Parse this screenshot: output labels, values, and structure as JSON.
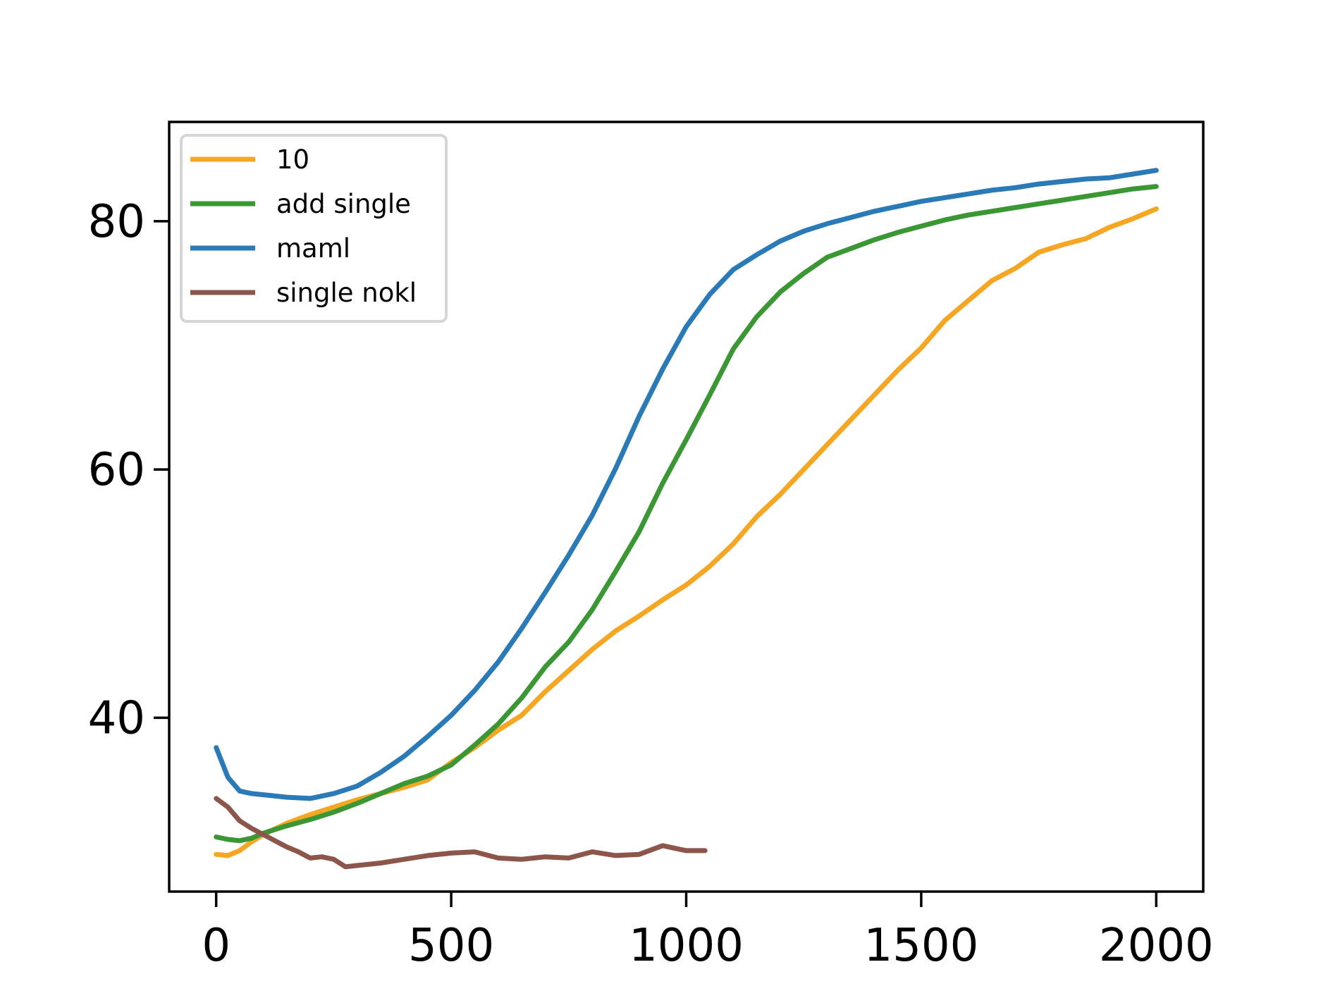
{
  "chart_data": {
    "type": "line",
    "title": "",
    "xlabel": "",
    "ylabel": "",
    "xlim": [
      -100,
      2100
    ],
    "ylim": [
      26,
      88
    ],
    "xticks": [
      0,
      500,
      1000,
      1500,
      2000
    ],
    "yticks": [
      40,
      60,
      80
    ],
    "grid": false,
    "legend_position": "top-left",
    "series": [
      {
        "name": "10",
        "color": "#f5a623",
        "x": [
          0,
          25,
          50,
          75,
          100,
          150,
          200,
          250,
          300,
          350,
          400,
          450,
          500,
          550,
          600,
          650,
          700,
          750,
          800,
          850,
          900,
          950,
          1000,
          1050,
          1100,
          1150,
          1200,
          1250,
          1300,
          1350,
          1400,
          1450,
          1500,
          1550,
          1600,
          1650,
          1700,
          1750,
          1800,
          1850,
          1900,
          1950,
          2000
        ],
        "y": [
          29,
          28.9,
          29.3,
          30,
          30.6,
          31.5,
          32.2,
          32.8,
          33.4,
          33.9,
          34.4,
          35,
          36.4,
          37.6,
          39,
          40.2,
          42.1,
          43.8,
          45.5,
          47,
          48.2,
          49.5,
          50.7,
          52.2,
          54,
          56.2,
          58,
          60,
          62,
          64,
          66,
          68,
          69.8,
          72,
          73.6,
          75.2,
          76.2,
          77.5,
          78.1,
          78.6,
          79.5,
          80.2,
          81
        ]
      },
      {
        "name": "add single",
        "color": "#3a9734",
        "x": [
          0,
          25,
          50,
          75,
          100,
          150,
          200,
          250,
          300,
          350,
          400,
          450,
          500,
          550,
          600,
          650,
          700,
          750,
          800,
          850,
          900,
          950,
          1000,
          1050,
          1100,
          1150,
          1200,
          1250,
          1300,
          1350,
          1400,
          1450,
          1500,
          1550,
          1600,
          1650,
          1700,
          1750,
          1800,
          1850,
          1900,
          1950,
          2000
        ],
        "y": [
          30.4,
          30.2,
          30.1,
          30.3,
          30.7,
          31.3,
          31.8,
          32.4,
          33.1,
          33.9,
          34.7,
          35.3,
          36.2,
          37.8,
          39.5,
          41.6,
          44.1,
          46.1,
          48.7,
          51.8,
          55,
          58.9,
          62.4,
          66,
          69.7,
          72.3,
          74.3,
          75.8,
          77.1,
          77.8,
          78.5,
          79.1,
          79.6,
          80.1,
          80.5,
          80.8,
          81.1,
          81.4,
          81.7,
          82,
          82.3,
          82.6,
          82.8
        ]
      },
      {
        "name": "maml",
        "color": "#2a7ab7",
        "x": [
          0,
          25,
          50,
          75,
          100,
          150,
          200,
          250,
          300,
          350,
          400,
          450,
          500,
          550,
          600,
          650,
          700,
          750,
          800,
          850,
          900,
          950,
          1000,
          1050,
          1100,
          1150,
          1200,
          1250,
          1300,
          1350,
          1400,
          1450,
          1500,
          1550,
          1600,
          1650,
          1700,
          1750,
          1800,
          1850,
          1900,
          1950,
          2000
        ],
        "y": [
          37.6,
          35.2,
          34.1,
          33.9,
          33.8,
          33.6,
          33.5,
          33.9,
          34.5,
          35.6,
          36.9,
          38.5,
          40.2,
          42.2,
          44.5,
          47.2,
          50.1,
          53.1,
          56.3,
          60.1,
          64.3,
          68.1,
          71.5,
          74.1,
          76.1,
          77.3,
          78.4,
          79.2,
          79.8,
          80.3,
          80.8,
          81.2,
          81.6,
          81.9,
          82.2,
          82.5,
          82.7,
          83,
          83.2,
          83.4,
          83.5,
          83.8,
          84.1
        ]
      },
      {
        "name": "single nokl",
        "color": "#8c564b",
        "x": [
          0,
          25,
          50,
          75,
          100,
          125,
          150,
          175,
          200,
          225,
          250,
          275,
          300,
          350,
          400,
          450,
          500,
          550,
          600,
          650,
          700,
          750,
          800,
          850,
          900,
          950,
          975,
          1000,
          1040
        ],
        "y": [
          33.5,
          32.8,
          31.7,
          31.1,
          30.6,
          30.1,
          29.6,
          29.2,
          28.7,
          28.8,
          28.6,
          28,
          28.1,
          28.3,
          28.6,
          28.9,
          29.1,
          29.2,
          28.7,
          28.6,
          28.8,
          28.7,
          29.2,
          28.9,
          29,
          29.7,
          29.5,
          29.3,
          29.3
        ]
      }
    ]
  }
}
